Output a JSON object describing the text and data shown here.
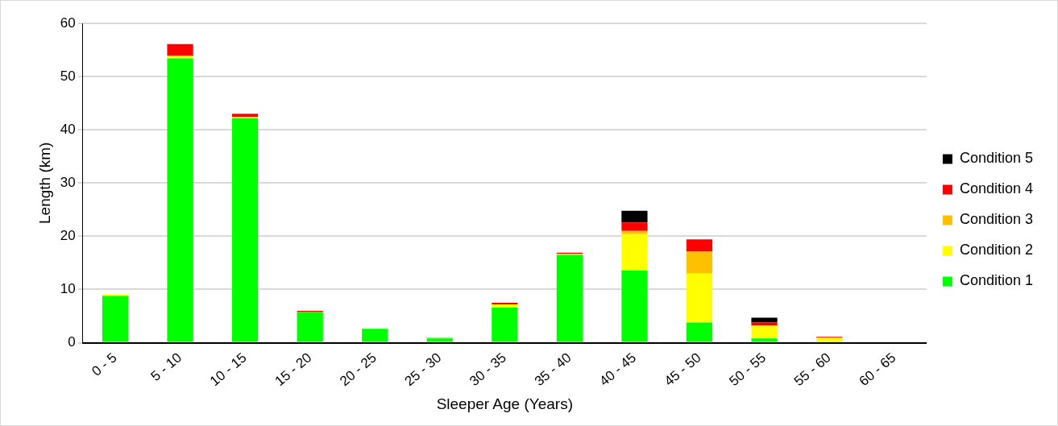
{
  "chart_data": {
    "type": "bar",
    "stacked": true,
    "xlabel": "Sleeper Age (Years)",
    "ylabel": "Length (km)",
    "categories": [
      "0 - 5",
      "5 - 10",
      "10 - 15",
      "15 - 20",
      "20 - 25",
      "25 - 30",
      "30 - 35",
      "35 - 40",
      "40 - 45",
      "45 - 50",
      "50 - 55",
      "55 - 60",
      "60 - 65"
    ],
    "series": [
      {
        "name": "Condition 1",
        "color": "#00ff00",
        "values": [
          8.8,
          53.4,
          42.2,
          5.8,
          2.6,
          0.8,
          6.6,
          16.5,
          13.6,
          3.8,
          0.8,
          0,
          0
        ]
      },
      {
        "name": "Condition 2",
        "color": "#ffff00",
        "values": [
          0.3,
          0.5,
          0.2,
          0,
          0,
          0.1,
          0.6,
          0.2,
          6.8,
          9.2,
          2.4,
          0.9,
          0
        ]
      },
      {
        "name": "Condition 3",
        "color": "#ffc000",
        "values": [
          0,
          0,
          0,
          0,
          0,
          0,
          0,
          0,
          0.6,
          4.1,
          0,
          0,
          0
        ]
      },
      {
        "name": "Condition 4",
        "color": "#ff0000",
        "values": [
          0,
          2.2,
          0.6,
          0.2,
          0,
          0.1,
          0.3,
          0.2,
          1.6,
          2.3,
          0.6,
          0.2,
          0
        ]
      },
      {
        "name": "Condition 5",
        "color": "#000000",
        "values": [
          0,
          0,
          0,
          0,
          0,
          0,
          0,
          0,
          2.2,
          0,
          0.9,
          0,
          0
        ]
      }
    ],
    "ylim": [
      0,
      60
    ],
    "yticks": [
      0,
      10,
      20,
      30,
      40,
      50,
      60
    ],
    "grid": "y",
    "legend": "right"
  }
}
